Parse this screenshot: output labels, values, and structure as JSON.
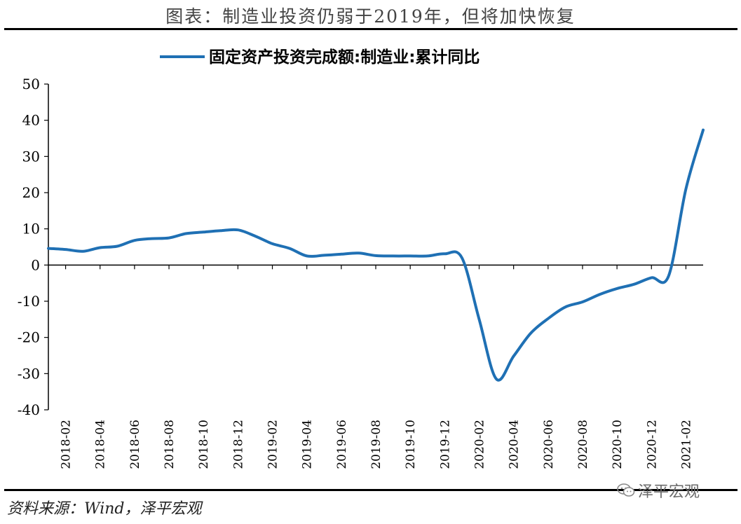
{
  "header": {
    "title": "图表：制造业投资仍弱于2019年，但将加快恢复"
  },
  "footer": {
    "source": "资料来源：Wind，泽平宏观",
    "watermark": "泽平宏观"
  },
  "chart_data": {
    "type": "line",
    "title": "",
    "xlabel": "",
    "ylabel": "",
    "ylim": [
      -40,
      50
    ],
    "yticks": [
      50,
      40,
      30,
      20,
      10,
      0,
      -10,
      -20,
      -30,
      -40
    ],
    "xtick_labels": [
      "2018-02",
      "2018-04",
      "2018-06",
      "2018-08",
      "2018-10",
      "2018-12",
      "2019-02",
      "2019-04",
      "2019-06",
      "2019-08",
      "2019-10",
      "2019-12",
      "2020-02",
      "2020-04",
      "2020-06",
      "2020-08",
      "2020-10",
      "2020-12",
      "2021-02"
    ],
    "legend": "top-center",
    "grid": false,
    "series": [
      {
        "name": "固定资产投资完成额:制造业:累计同比",
        "color": "#1f70b4",
        "x": [
          "2018-01",
          "2018-02",
          "2018-03",
          "2018-04",
          "2018-05",
          "2018-06",
          "2018-07",
          "2018-08",
          "2018-09",
          "2018-10",
          "2018-11",
          "2018-12",
          "2019-01",
          "2019-02",
          "2019-03",
          "2019-04",
          "2019-05",
          "2019-06",
          "2019-07",
          "2019-08",
          "2019-09",
          "2019-10",
          "2019-11",
          "2019-12",
          "2020-01",
          "2020-02",
          "2020-03",
          "2020-04",
          "2020-05",
          "2020-06",
          "2020-07",
          "2020-08",
          "2020-09",
          "2020-10",
          "2020-11",
          "2020-12",
          "2021-01",
          "2021-02",
          "2021-03"
        ],
        "values": [
          4.6,
          4.3,
          3.8,
          4.8,
          5.2,
          6.8,
          7.3,
          7.5,
          8.7,
          9.1,
          9.5,
          9.7,
          8.0,
          5.9,
          4.6,
          2.5,
          2.7,
          3.0,
          3.3,
          2.6,
          2.5,
          2.5,
          2.5,
          3.1,
          2.0,
          -15.0,
          -31.5,
          -25.2,
          -18.8,
          -14.8,
          -11.6,
          -10.2,
          -8.1,
          -6.5,
          -5.3,
          -3.5,
          -3.0,
          21.0,
          37.3
        ]
      }
    ]
  }
}
